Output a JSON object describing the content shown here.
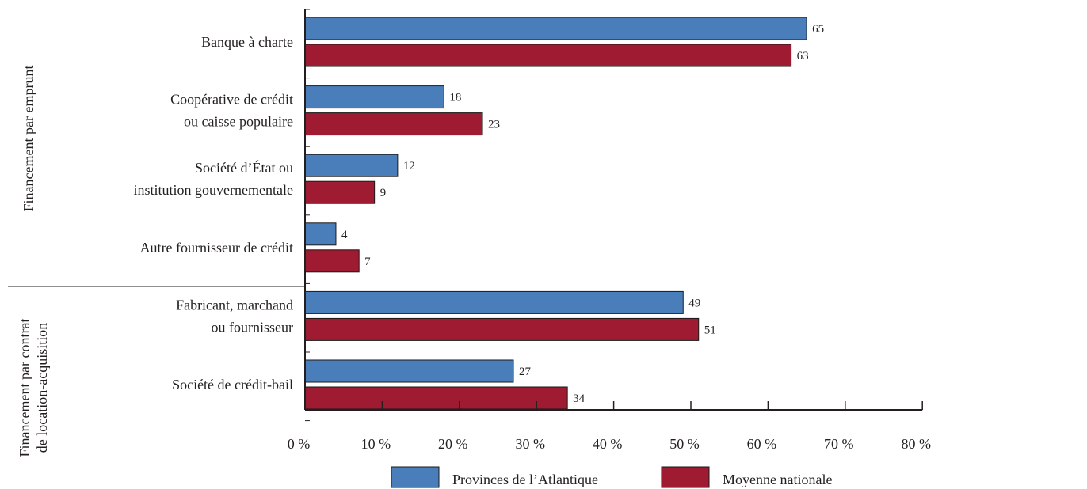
{
  "chart_data": {
    "type": "bar",
    "orientation": "horizontal",
    "groups": [
      {
        "label_lines": [
          "Financement par emprunt"
        ],
        "category_indices": [
          0,
          1,
          2,
          3
        ]
      },
      {
        "label_lines": [
          "Financement par contrat",
          "de location-acquisition"
        ],
        "category_indices": [
          4,
          5
        ]
      }
    ],
    "categories": [
      {
        "lines": [
          "Banque à charte"
        ]
      },
      {
        "lines": [
          "Coopérative de crédit",
          "ou caisse populaire"
        ]
      },
      {
        "lines": [
          "Société d’État ou",
          "institution gouvernementale"
        ]
      },
      {
        "lines": [
          "Autre fournisseur de crédit"
        ]
      },
      {
        "lines": [
          "Fabricant, marchand",
          "ou fournisseur"
        ]
      },
      {
        "lines": [
          "Société de crédit-bail"
        ]
      }
    ],
    "series": [
      {
        "name": "Provinces de l’Atlantique",
        "color": "#4a7ebb",
        "values": [
          65,
          18,
          12,
          4,
          49,
          27
        ]
      },
      {
        "name": "Moyenne nationale",
        "color": "#9e1b32",
        "values": [
          63,
          23,
          9,
          7,
          51,
          34
        ]
      }
    ],
    "x_ticks": [
      "0 %",
      "10 %",
      "20 %",
      "30 %",
      "40 %",
      "50 %",
      "60 %",
      "70 %",
      "80 %"
    ],
    "xlim": [
      0,
      80
    ],
    "grid": false,
    "legend_position": "bottom"
  }
}
